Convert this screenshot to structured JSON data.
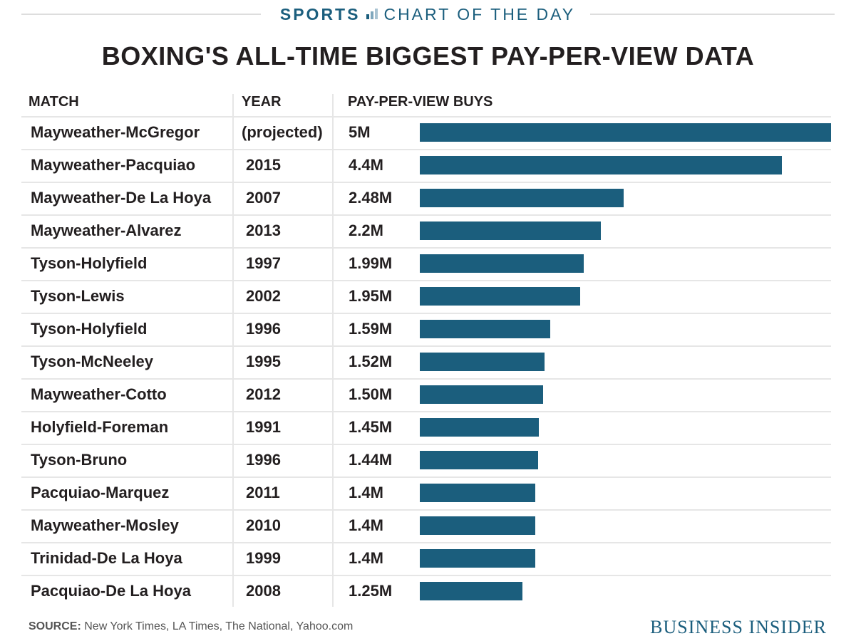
{
  "banner": {
    "section": "SPORTS",
    "feature": "CHART OF THE DAY",
    "icon": "bar-chart-icon",
    "accent_color": "#1b5e7d"
  },
  "headers": {
    "match": "MATCH",
    "year": "YEAR",
    "buys": "PAY-PER-VIEW BUYS"
  },
  "footer": {
    "source_label": "SOURCE:",
    "source_text": "New York Times, LA Times, The National, Yahoo.com",
    "brand": "BUSINESS INSIDER"
  },
  "chart_data": {
    "type": "bar",
    "orientation": "horizontal",
    "title": "BOXING'S ALL-TIME BIGGEST PAY-PER-VIEW DATA",
    "bar_color": "#1b5e7d",
    "xlim": [
      0,
      5
    ],
    "unit": "millions of buys",
    "rows": [
      {
        "match": "Mayweather-McGregor",
        "year": "(projected)",
        "label": "5M",
        "value": 5.0
      },
      {
        "match": "Mayweather-Pacquiao",
        "year": "2015",
        "label": "4.4M",
        "value": 4.4
      },
      {
        "match": "Mayweather-De La Hoya",
        "year": "2007",
        "label": "2.48M",
        "value": 2.48
      },
      {
        "match": "Mayweather-Alvarez",
        "year": "2013",
        "label": "2.2M",
        "value": 2.2
      },
      {
        "match": "Tyson-Holyfield",
        "year": "1997",
        "label": "1.99M",
        "value": 1.99
      },
      {
        "match": "Tyson-Lewis",
        "year": "2002",
        "label": "1.95M",
        "value": 1.95
      },
      {
        "match": "Tyson-Holyfield",
        "year": "1996",
        "label": "1.59M",
        "value": 1.59
      },
      {
        "match": "Tyson-McNeeley",
        "year": "1995",
        "label": "1.52M",
        "value": 1.52
      },
      {
        "match": "Mayweather-Cotto",
        "year": "2012",
        "label": "1.50M",
        "value": 1.5
      },
      {
        "match": "Holyfield-Foreman",
        "year": "1991",
        "label": "1.45M",
        "value": 1.45
      },
      {
        "match": "Tyson-Bruno",
        "year": "1996",
        "label": "1.44M",
        "value": 1.44
      },
      {
        "match": "Pacquiao-Marquez",
        "year": "2011",
        "label": "1.4M",
        "value": 1.4
      },
      {
        "match": "Mayweather-Mosley",
        "year": "2010",
        "label": "1.4M",
        "value": 1.4
      },
      {
        "match": "Trinidad-De La Hoya",
        "year": "1999",
        "label": "1.4M",
        "value": 1.4
      },
      {
        "match": "Pacquiao-De La Hoya",
        "year": "2008",
        "label": "1.25M",
        "value": 1.25
      }
    ]
  }
}
